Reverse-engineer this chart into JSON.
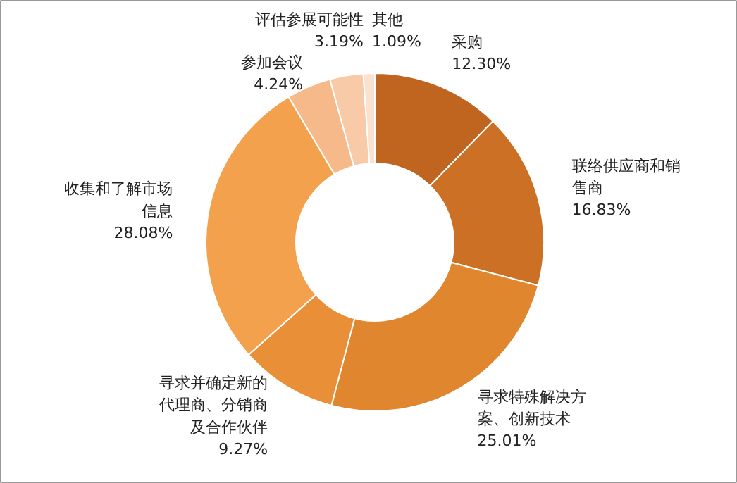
{
  "chart_data": {
    "type": "donut",
    "categories": [
      "采购",
      "联络供应商和销售商",
      "寻求特殊解决方案、创新技术",
      "寻求并确定新的代理商、分销商及合作伙伴",
      "收集和了解市场信息",
      "参加会议",
      "评估参展可能性",
      "其他"
    ],
    "values": [
      12.3,
      16.83,
      25.01,
      9.27,
      28.08,
      4.24,
      3.19,
      1.09
    ],
    "value_labels": [
      "12.30%",
      "16.83%",
      "25.01%",
      "9.27%",
      "28.08%",
      "4.24%",
      "3.19%",
      "1.09%"
    ],
    "colors": [
      "#c0651f",
      "#cc7026",
      "#e0862e",
      "#e98f38",
      "#f4a14e",
      "#f6b98a",
      "#f8caa8",
      "#fbe1cf"
    ]
  }
}
